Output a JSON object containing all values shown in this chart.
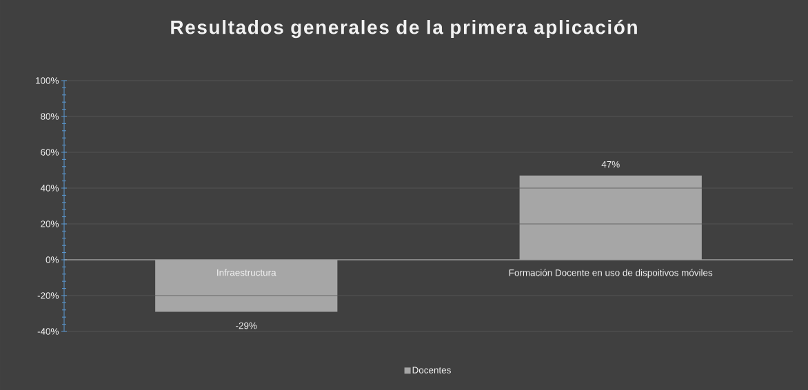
{
  "chart_data": {
    "type": "bar",
    "title": "Resultados generales de la primera aplicación",
    "categories": [
      "Infraestructura",
      "Formación Docente en uso de dispoitivos móviles"
    ],
    "series": [
      {
        "name": "Docentes",
        "color": "#a6a6a6",
        "values": [
          -29,
          47
        ],
        "value_labels": [
          "-29%",
          "47%"
        ]
      }
    ],
    "ylim": [
      -40,
      100
    ],
    "yticks": [
      {
        "value": -40,
        "label": "-40%"
      },
      {
        "value": -20,
        "label": "-20%"
      },
      {
        "value": 0,
        "label": "0%"
      },
      {
        "value": 20,
        "label": "20%"
      },
      {
        "value": 40,
        "label": "40%"
      },
      {
        "value": 60,
        "label": "60%"
      },
      {
        "value": 80,
        "label": "80%"
      },
      {
        "value": 100,
        "label": "100%"
      }
    ],
    "grid": "y",
    "legend": "bottom"
  }
}
